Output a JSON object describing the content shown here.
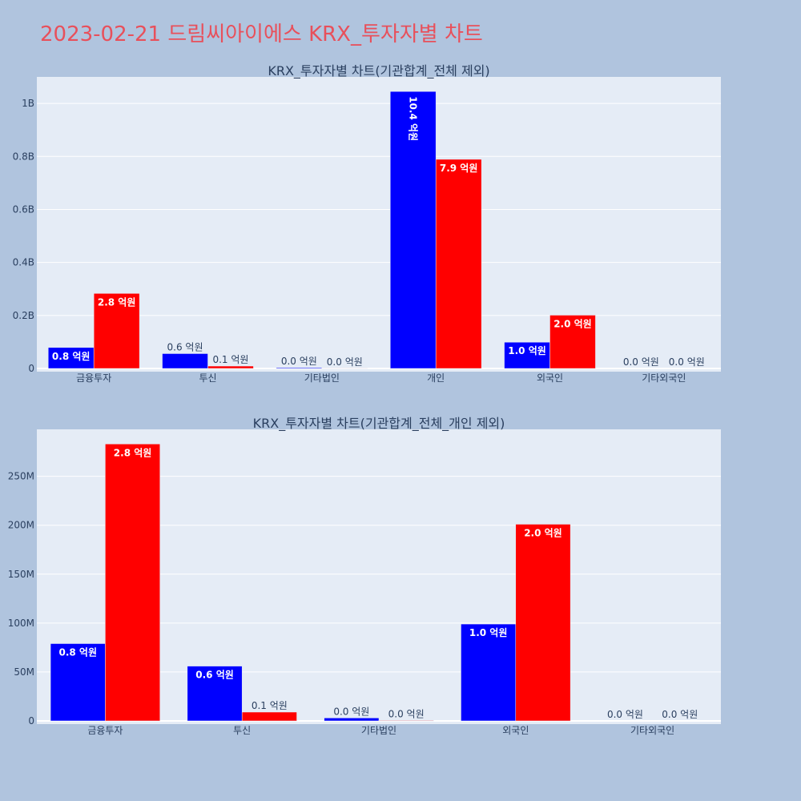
{
  "title": "2023-02-21 드림씨아이에스 KRX_투자자별 차트",
  "colors": {
    "page_bg": "#b0c4de",
    "plot_bg": "#e5ecf6",
    "series_a": "#0000ff",
    "series_b": "#ff0000",
    "title": "#e8505b",
    "text": "#2a3f5f"
  },
  "chart_data": [
    {
      "type": "bar",
      "title": "KRX_투자자별 차트(기관합계_전체 제외)",
      "categories": [
        "금융투자",
        "투신",
        "기타법인",
        "개인",
        "외국인",
        "기타외국인"
      ],
      "series": [
        {
          "values": [
            79000000,
            56000000,
            3000000,
            1045000000,
            99000000,
            0
          ],
          "labels": [
            "0.8 억원",
            "0.6 억원",
            "0.0 억원",
            "10.4 억원",
            "1.0 억원",
            "0.0 억원"
          ]
        },
        {
          "values": [
            283000000,
            9000000,
            500000,
            789000000,
            201000000,
            0
          ],
          "labels": [
            "2.8 억원",
            "0.1 억원",
            "0.0 억원",
            "7.9 억원",
            "2.0 억원",
            "0.0 억원"
          ]
        }
      ],
      "ylim": [
        0,
        1100000000
      ],
      "yticks": [
        0,
        200000000,
        400000000,
        600000000,
        800000000,
        1000000000
      ],
      "ytick_labels": [
        "0",
        "0.2B",
        "0.4B",
        "0.6B",
        "0.8B",
        "1B"
      ],
      "grid": true
    },
    {
      "type": "bar",
      "title": "KRX_투자자별 차트(기관합계_전체_개인 제외)",
      "categories": [
        "금융투자",
        "투신",
        "기타법인",
        "외국인",
        "기타외국인"
      ],
      "series": [
        {
          "values": [
            79000000,
            56000000,
            3000000,
            99000000,
            0
          ],
          "labels": [
            "0.8 억원",
            "0.6 억원",
            "0.0 억원",
            "1.0 억원",
            "0.0 억원"
          ]
        },
        {
          "values": [
            283000000,
            9000000,
            500000,
            201000000,
            0
          ],
          "labels": [
            "2.8 억원",
            "0.1 억원",
            "0.0 억원",
            "2.0 억원",
            "0.0 억원"
          ]
        }
      ],
      "ylim": [
        0,
        298000000
      ],
      "yticks": [
        0,
        50000000,
        100000000,
        150000000,
        200000000,
        250000000
      ],
      "ytick_labels": [
        "0",
        "50M",
        "100M",
        "150M",
        "200M",
        "250M"
      ],
      "grid": true
    }
  ]
}
